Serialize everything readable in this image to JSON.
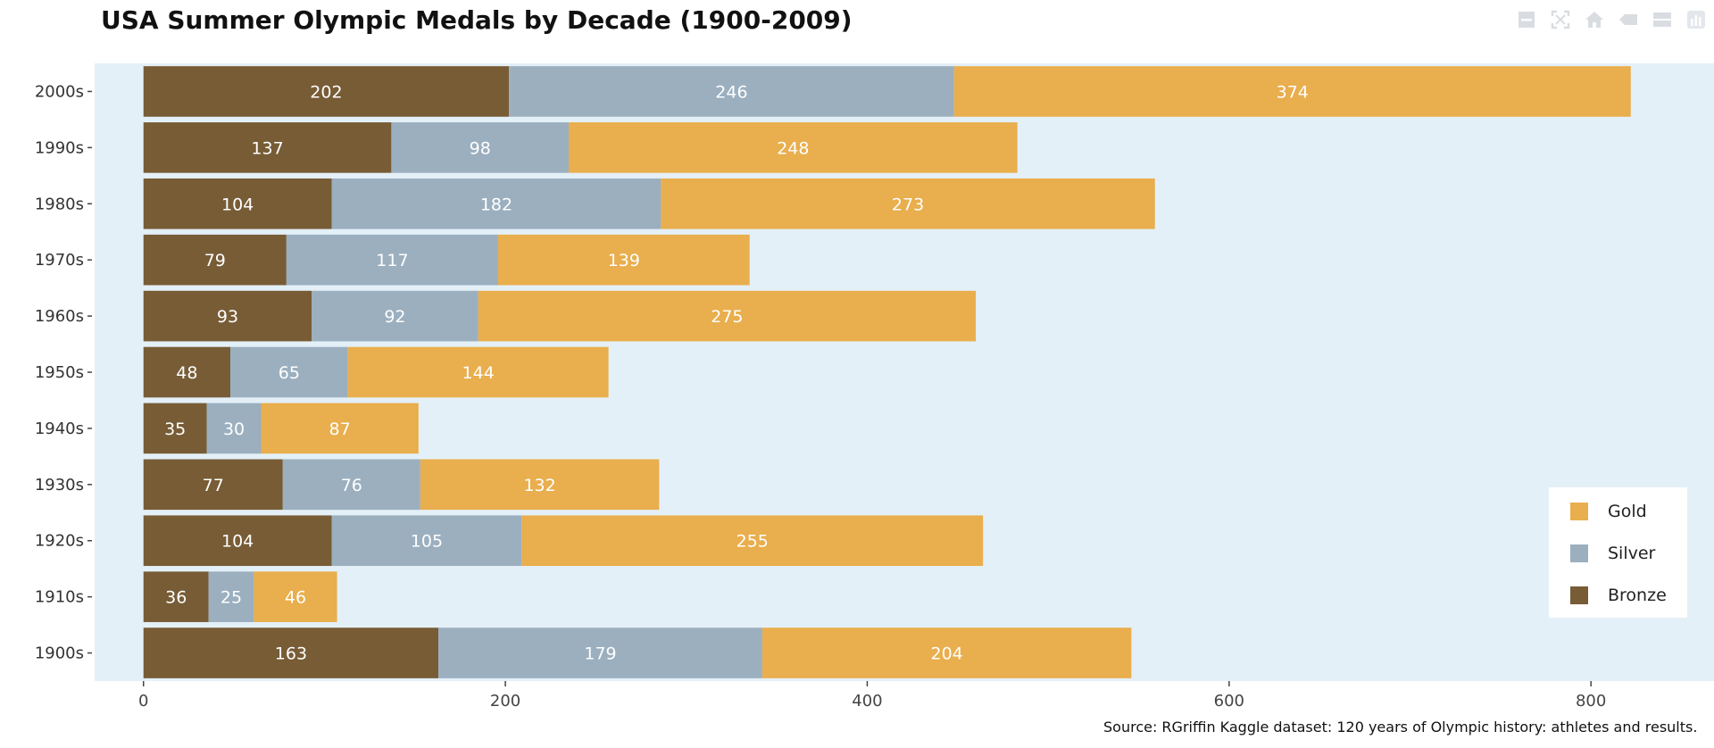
{
  "colors": {
    "gold": "#e9ae4d",
    "silver": "#9bafbf",
    "bronze": "#775c36",
    "plot_bg": "#e4f0f8"
  },
  "chart_data": {
    "type": "bar",
    "orientation": "horizontal",
    "stacked": true,
    "title": "USA Summer Olympic Medals by Decade (1900-2009)",
    "xlabel": "",
    "ylabel": "",
    "categories": [
      "1900s",
      "1910s",
      "1920s",
      "1930s",
      "1940s",
      "1950s",
      "1960s",
      "1970s",
      "1980s",
      "1990s",
      "2000s"
    ],
    "series": [
      {
        "name": "Bronze",
        "color": "#775c36",
        "values": [
          163,
          36,
          104,
          77,
          35,
          48,
          93,
          79,
          104,
          137,
          202
        ]
      },
      {
        "name": "Silver",
        "color": "#9bafbf",
        "values": [
          179,
          25,
          105,
          76,
          30,
          65,
          92,
          117,
          182,
          98,
          246
        ]
      },
      {
        "name": "Gold",
        "color": "#e9ae4d",
        "values": [
          204,
          46,
          255,
          132,
          87,
          144,
          275,
          139,
          273,
          248,
          374
        ]
      }
    ],
    "xlim": [
      -27,
      868
    ],
    "xticks": [
      0,
      200,
      400,
      600,
      800
    ],
    "grid": false,
    "legend": {
      "placement": "bottom-right",
      "order": [
        "Gold",
        "Silver",
        "Bronze"
      ]
    },
    "source": "Source: RGriffin Kaggle dataset: 120 years of Olympic history: athletes and results."
  },
  "modebar": {
    "icons": [
      "zoom-out-icon",
      "autoscale-icon",
      "home-icon",
      "hover-closest-icon",
      "hover-compare-icon",
      "plotly-logo-icon"
    ]
  }
}
